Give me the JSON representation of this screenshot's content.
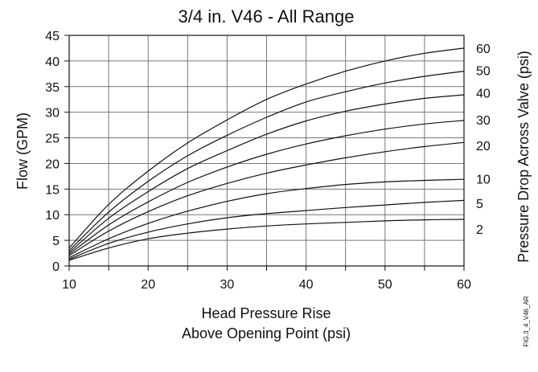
{
  "figure_code": "FIG.3_4_V46_AR",
  "chart_data": {
    "type": "line",
    "title": "3/4 in. V46 - All Range",
    "xlabel_lines": [
      "Head Pressure Rise",
      "Above Opening Point (psi)"
    ],
    "ylabel": "Flow (GPM)",
    "right_label": "Pressure Drop Across Valve (psi)",
    "xlim": [
      10,
      60
    ],
    "ylim": [
      0,
      45
    ],
    "x_ticks": [
      10,
      20,
      30,
      40,
      50,
      60
    ],
    "y_ticks": [
      0,
      5,
      10,
      15,
      20,
      25,
      30,
      35,
      40,
      45
    ],
    "x_minor_step": 5,
    "grid": true,
    "line_color": "#111111",
    "grid_color": "#777777",
    "series": [
      {
        "name": "60",
        "x": [
          10,
          15,
          20,
          25,
          30,
          35,
          40,
          45,
          50,
          55,
          60
        ],
        "y": [
          3.5,
          12.0,
          18.5,
          24.0,
          28.5,
          32.5,
          35.5,
          38.0,
          40.0,
          41.5,
          42.5
        ]
      },
      {
        "name": "50",
        "x": [
          10,
          15,
          20,
          25,
          30,
          35,
          40,
          45,
          50,
          55,
          60
        ],
        "y": [
          3.0,
          10.5,
          16.5,
          21.5,
          25.5,
          29.0,
          32.0,
          34.0,
          35.7,
          37.0,
          38.0
        ]
      },
      {
        "name": "40",
        "x": [
          10,
          15,
          20,
          25,
          30,
          35,
          40,
          45,
          50,
          55,
          60
        ],
        "y": [
          2.6,
          9.3,
          14.5,
          19.0,
          22.5,
          25.7,
          28.3,
          30.2,
          31.6,
          32.7,
          33.4
        ]
      },
      {
        "name": "30",
        "x": [
          10,
          15,
          20,
          25,
          30,
          35,
          40,
          45,
          50,
          55,
          60
        ],
        "y": [
          2.3,
          8.0,
          12.5,
          16.3,
          19.3,
          21.8,
          23.8,
          25.4,
          26.7,
          27.7,
          28.4
        ]
      },
      {
        "name": "20",
        "x": [
          10,
          15,
          20,
          25,
          30,
          35,
          40,
          45,
          50,
          55,
          60
        ],
        "y": [
          2.0,
          6.8,
          10.6,
          13.7,
          16.1,
          18.1,
          19.7,
          21.1,
          22.3,
          23.3,
          24.1
        ]
      },
      {
        "name": "10",
        "x": [
          10,
          15,
          20,
          25,
          30,
          35,
          40,
          45,
          50,
          55,
          60
        ],
        "y": [
          1.6,
          5.3,
          8.3,
          10.7,
          12.6,
          14.1,
          15.1,
          15.9,
          16.4,
          16.7,
          16.9
        ]
      },
      {
        "name": "5",
        "x": [
          10,
          15,
          20,
          25,
          30,
          35,
          40,
          45,
          50,
          55,
          60
        ],
        "y": [
          1.3,
          4.4,
          6.6,
          8.2,
          9.4,
          10.2,
          10.8,
          11.4,
          11.9,
          12.4,
          12.8
        ]
      },
      {
        "name": "2",
        "x": [
          10,
          15,
          20,
          25,
          30,
          35,
          40,
          45,
          50,
          55,
          60
        ],
        "y": [
          1.1,
          3.5,
          5.3,
          6.4,
          7.2,
          7.8,
          8.2,
          8.5,
          8.8,
          9.0,
          9.1
        ]
      }
    ],
    "right_labels": [
      {
        "text": "60",
        "y": 42.5
      },
      {
        "text": "50",
        "y": 38.2
      },
      {
        "text": "40",
        "y": 33.8
      },
      {
        "text": "30",
        "y": 28.5
      },
      {
        "text": "20",
        "y": 23.5
      },
      {
        "text": "10",
        "y": 17.0
      },
      {
        "text": "5",
        "y": 12.2
      },
      {
        "text": "2",
        "y": 7.2
      }
    ]
  }
}
